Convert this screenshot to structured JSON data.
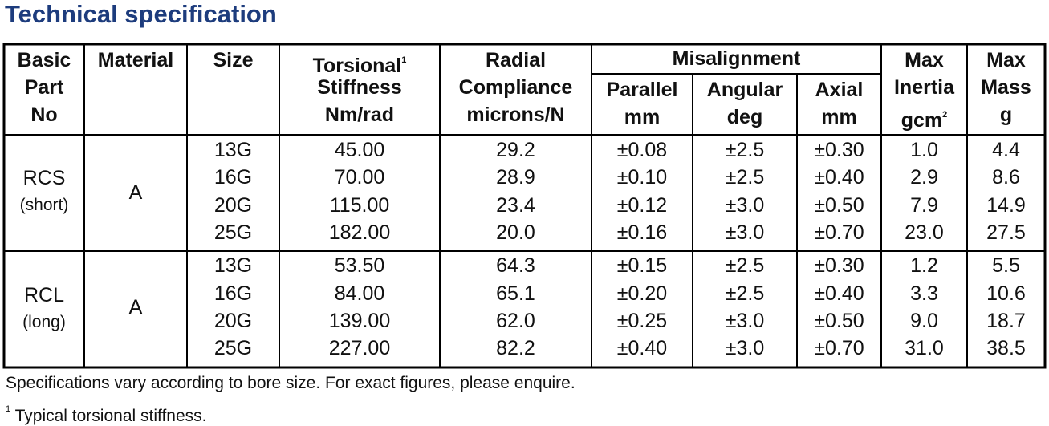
{
  "title": "Technical specification",
  "table": {
    "group_header": "Misalignment",
    "headers": [
      {
        "lines": [
          "Basic",
          "Part",
          "No"
        ]
      },
      {
        "lines": [
          "Material"
        ]
      },
      {
        "lines": [
          "Size"
        ]
      },
      {
        "lines": [
          "Torsional",
          "Stiffness",
          "Nm/rad"
        ],
        "sup": "1"
      },
      {
        "lines": [
          "Radial",
          "Compliance",
          "microns/N"
        ]
      },
      {
        "lines": [
          "Parallel",
          "mm"
        ]
      },
      {
        "lines": [
          "Angular",
          "deg"
        ]
      },
      {
        "lines": [
          "Axial",
          "mm"
        ]
      },
      {
        "lines": [
          "Max",
          "Inertia",
          "gcm"
        ],
        "sup": "2"
      },
      {
        "lines": [
          "Max",
          "Mass",
          "g"
        ]
      }
    ],
    "groups": [
      {
        "part": "RCS",
        "note": "(short)",
        "material": "A",
        "rows": [
          [
            "13G",
            "45.00",
            "29.2",
            "±0.08",
            "±2.5",
            "±0.30",
            "1.0",
            "4.4"
          ],
          [
            "16G",
            "70.00",
            "28.9",
            "±0.10",
            "±2.5",
            "±0.40",
            "2.9",
            "8.6"
          ],
          [
            "20G",
            "115.00",
            "23.4",
            "±0.12",
            "±3.0",
            "±0.50",
            "7.9",
            "14.9"
          ],
          [
            "25G",
            "182.00",
            "20.0",
            "±0.16",
            "±3.0",
            "±0.70",
            "23.0",
            "27.5"
          ]
        ]
      },
      {
        "part": "RCL",
        "note": "(long)",
        "material": "A",
        "rows": [
          [
            "13G",
            "53.50",
            "64.3",
            "±0.15",
            "±2.5",
            "±0.30",
            "1.2",
            "5.5"
          ],
          [
            "16G",
            "84.00",
            "65.1",
            "±0.20",
            "±2.5",
            "±0.40",
            "3.3",
            "10.6"
          ],
          [
            "20G",
            "139.00",
            "62.0",
            "±0.25",
            "±3.0",
            "±0.50",
            "9.0",
            "18.7"
          ],
          [
            "25G",
            "227.00",
            "82.2",
            "±0.40",
            "±3.0",
            "±0.70",
            "31.0",
            "38.5"
          ]
        ]
      }
    ]
  },
  "footer": {
    "note": "Specifications vary according to bore size. For exact figures, please enquire.",
    "footnote_mark": "1",
    "footnote": "Typical torsional stiffness."
  }
}
